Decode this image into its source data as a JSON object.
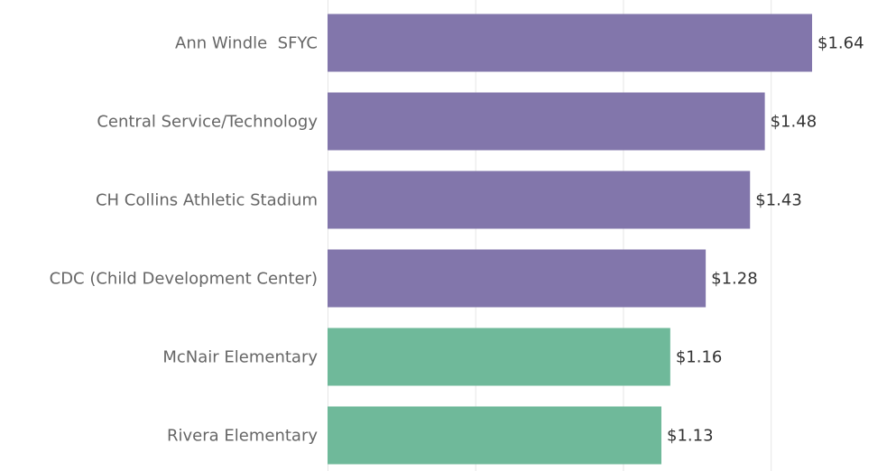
{
  "chart_data": {
    "type": "bar",
    "orientation": "horizontal",
    "categories": [
      "Ann Windle  SFYC",
      "Central Service/Technology",
      "CH Collins Athletic Stadium",
      "CDC (Child Development Center)",
      "McNair Elementary",
      "Rivera Elementary"
    ],
    "values": [
      1.64,
      1.48,
      1.43,
      1.28,
      1.16,
      1.13
    ],
    "value_labels": [
      "$1.64",
      "$1.48",
      "$1.43",
      "$1.28",
      "$1.16",
      "$1.13"
    ],
    "colors": [
      "#8276ab",
      "#8276ab",
      "#8276ab",
      "#8276ab",
      "#6fb99a",
      "#6fb99a"
    ],
    "xlim": [
      0,
      1.924
    ],
    "xticks": [
      0,
      0.5,
      1,
      1.5
    ],
    "grid": true
  }
}
